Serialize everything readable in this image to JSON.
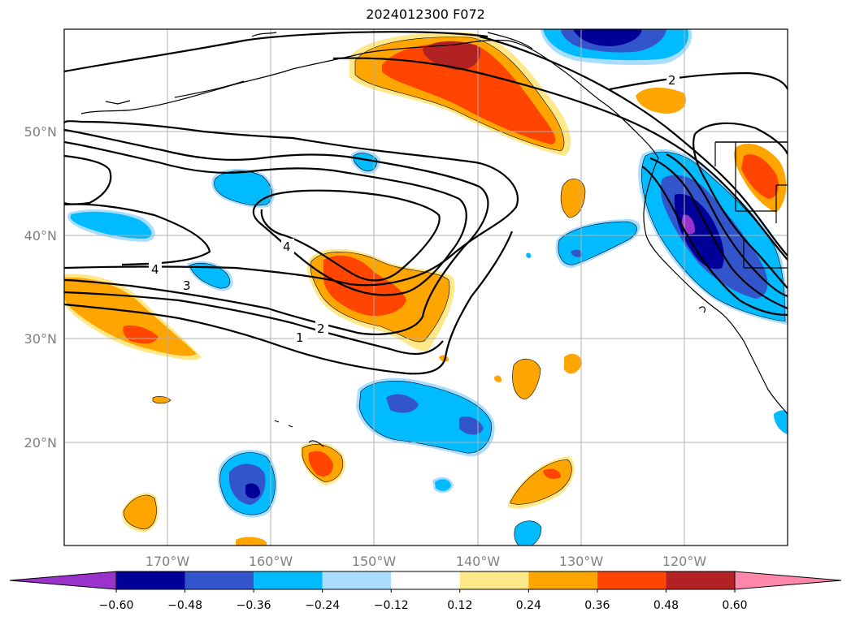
{
  "title": "2024012300 F072",
  "map": {
    "lat_labels": [
      "50°N",
      "40°N",
      "30°N",
      "20°N"
    ],
    "lon_labels": [
      "170°W",
      "160°W",
      "150°W",
      "140°W",
      "130°W",
      "120°W"
    ],
    "contour_labels": [
      "4",
      "3",
      "2",
      "1",
      "4",
      "2"
    ],
    "contour_color": "#000000",
    "coastline_color": "#000000",
    "grid_color": "#b0b0b0"
  },
  "colorbar": {
    "tick_labels": [
      "−0.60",
      "−0.48",
      "−0.36",
      "−0.24",
      "−0.12",
      "0.12",
      "0.24",
      "0.36",
      "0.48",
      "0.60"
    ],
    "colors": [
      "#9933cc",
      "#000099",
      "#3355cc",
      "#00bbff",
      "#aaddff",
      "#ffffff",
      "#ffe88a",
      "#ffa500",
      "#ff4500",
      "#b22222",
      "#ff88aa"
    ]
  }
}
